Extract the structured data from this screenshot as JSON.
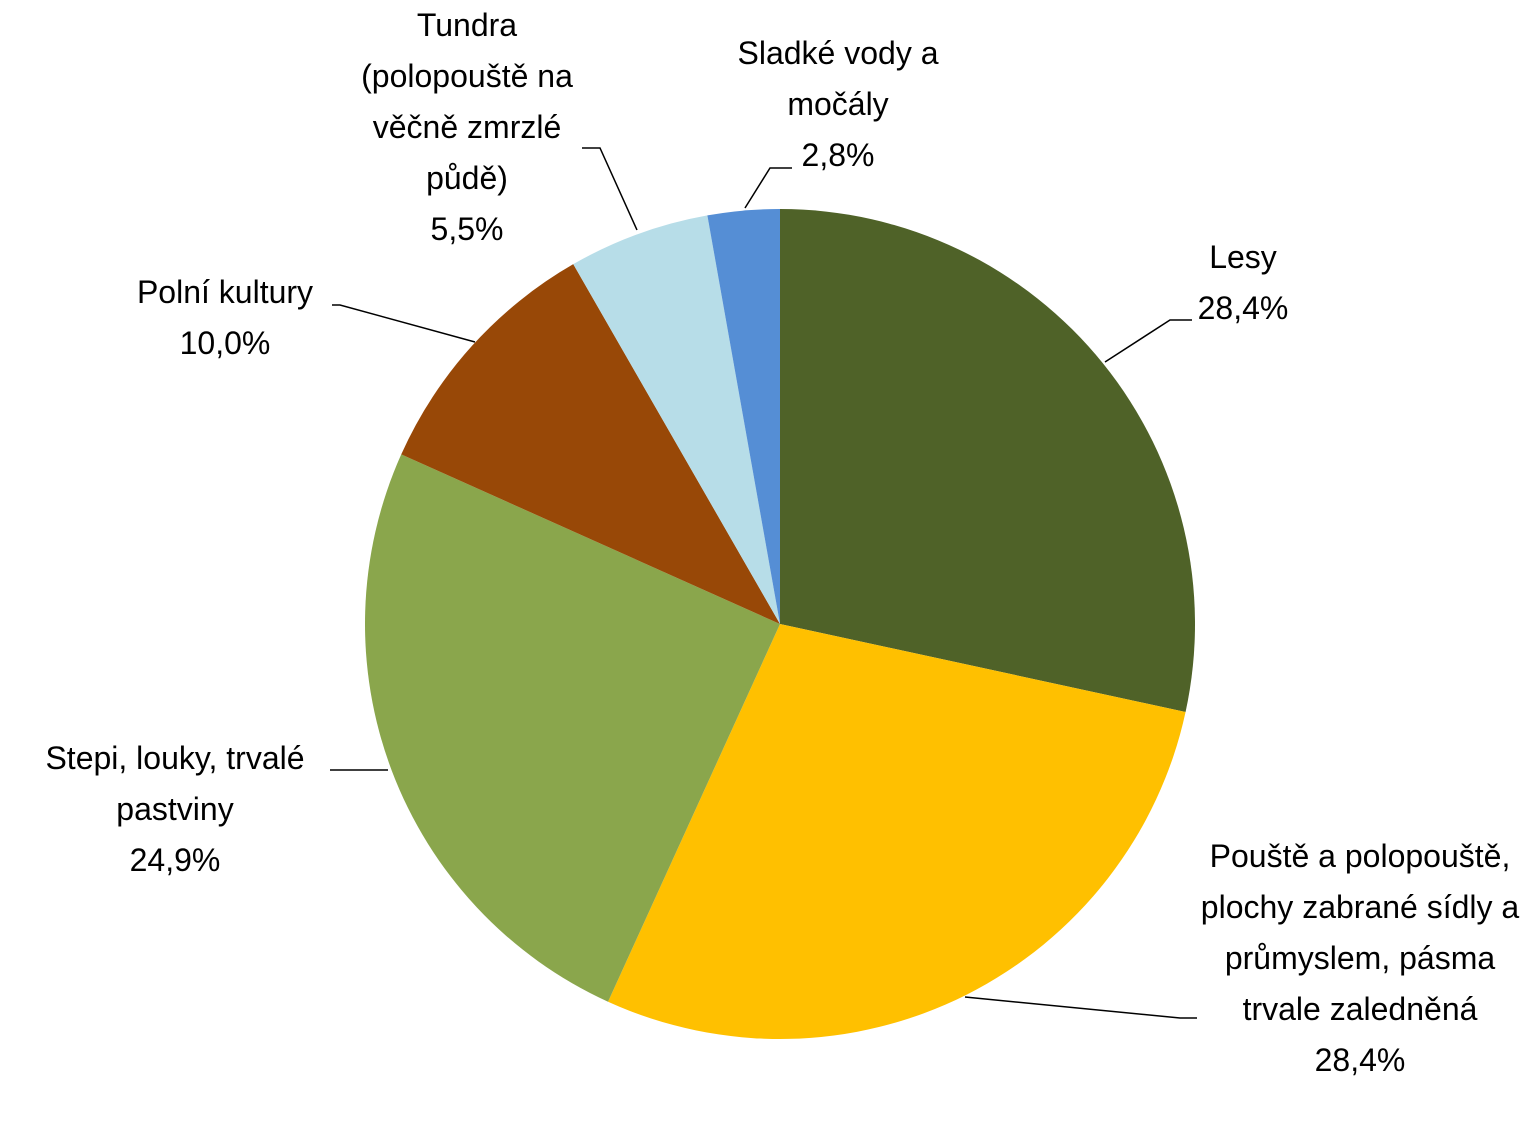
{
  "chart_data": {
    "type": "pie",
    "categories": [
      "Lesy",
      "Pouště a polopouště, plochy zabrané sídly a průmyslem, pásma trvale zaledněná",
      "Stepi, louky, trvalé pastviny",
      "Polní kultury",
      "Tundra (polopouště na věčně zmrzlé půdě)",
      "Sladké vody a močály"
    ],
    "values": [
      28.4,
      28.4,
      24.9,
      10.0,
      5.5,
      2.8
    ],
    "value_labels": [
      "28,4%",
      "28,4%",
      "24,9%",
      "10,0%",
      "5,5%",
      "2,8%"
    ],
    "colors": [
      "#4f6228",
      "#ffc000",
      "#8aa64c",
      "#984807",
      "#b7dde8",
      "#558ed5"
    ]
  }
}
